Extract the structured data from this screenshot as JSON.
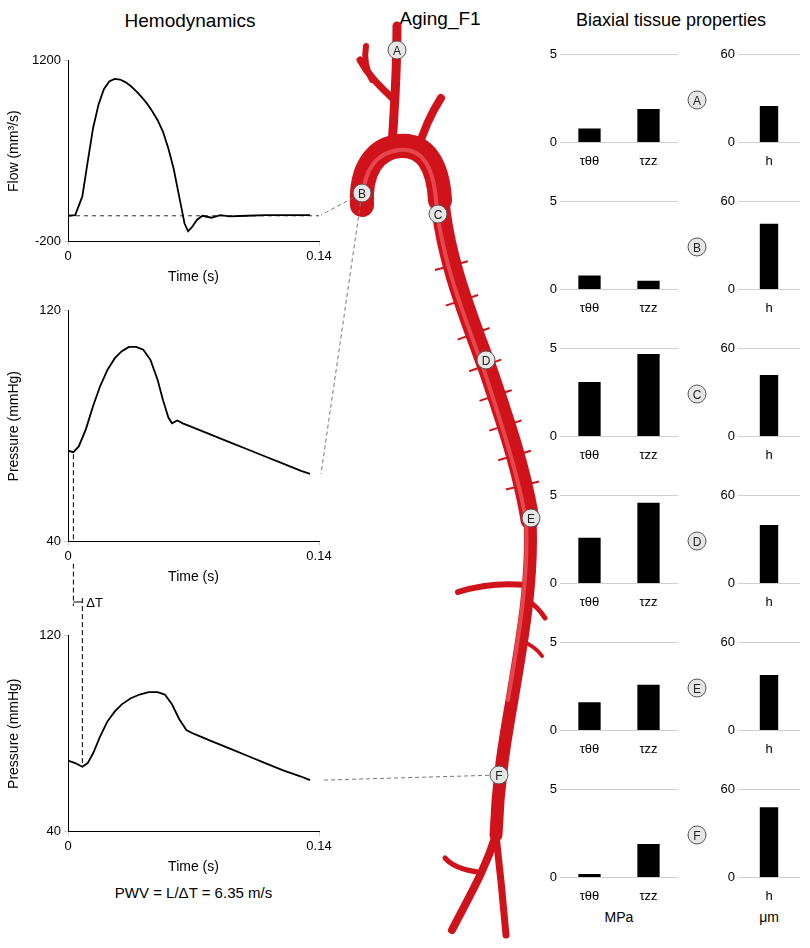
{
  "titles": {
    "figure": "Aging_F1",
    "hemodynamics": "Hemodynamics",
    "tissue": "Biaxial tissue properties"
  },
  "diagram": {
    "sites": [
      "A",
      "B",
      "C",
      "D",
      "E",
      "F"
    ]
  },
  "annotations": {
    "delta_t": {
      "label": "ΔT",
      "from": 0.003,
      "to": 0.008
    },
    "pwv": "PWV = L/ΔT = 6.35 m/s"
  },
  "chart_data": [
    {
      "type": "line",
      "site": "B",
      "color": "#000000",
      "grid": false,
      "xlabel": "Time (s)",
      "ylabel": "Flow (mm³/s)",
      "xlim": [
        0,
        0.14
      ],
      "xticks": [
        0,
        0.14
      ],
      "ylim": [
        -200,
        1200
      ],
      "yticks": [
        -200,
        1200
      ],
      "reference_y": 0,
      "x": [
        0,
        0.004,
        0.008,
        0.011,
        0.014,
        0.017,
        0.02,
        0.023,
        0.026,
        0.029,
        0.032,
        0.035,
        0.038,
        0.041,
        0.044,
        0.047,
        0.05,
        0.053,
        0.056,
        0.059,
        0.061,
        0.063,
        0.065,
        0.067,
        0.069,
        0.072,
        0.075,
        0.08,
        0.085,
        0.09,
        0.1,
        0.11,
        0.12,
        0.13,
        0.135
      ],
      "values": [
        0,
        5,
        150,
        420,
        680,
        860,
        980,
        1040,
        1060,
        1055,
        1035,
        1005,
        965,
        920,
        870,
        810,
        740,
        650,
        520,
        360,
        220,
        80,
        -60,
        -120,
        -90,
        -30,
        0,
        -15,
        5,
        -5,
        0,
        5,
        5,
        5,
        5
      ]
    },
    {
      "type": "line",
      "site": "B",
      "color": "#000000",
      "grid": false,
      "xlabel": "Time (s)",
      "ylabel": "Pressure (mmHg)",
      "xlim": [
        0,
        0.14
      ],
      "xticks": [
        0,
        0.14
      ],
      "ylim": [
        40,
        120
      ],
      "yticks": [
        40,
        120
      ],
      "x": [
        0,
        0.003,
        0.006,
        0.01,
        0.014,
        0.018,
        0.022,
        0.026,
        0.03,
        0.034,
        0.038,
        0.042,
        0.046,
        0.05,
        0.053,
        0.056,
        0.058,
        0.061,
        0.064,
        0.07,
        0.08,
        0.09,
        0.1,
        0.11,
        0.12,
        0.13,
        0.135
      ],
      "values": [
        71.5,
        71,
        73,
        79,
        87,
        94,
        99.5,
        103.5,
        106,
        107.5,
        107.5,
        106.5,
        103,
        96,
        89,
        83,
        81,
        82,
        81,
        79.5,
        77,
        74.5,
        72,
        69.5,
        67,
        64.5,
        63.5
      ]
    },
    {
      "type": "line",
      "site": "F",
      "color": "#000000",
      "grid": false,
      "xlabel": "Time (s)",
      "ylabel": "Pressure (mmHg)",
      "xlim": [
        0,
        0.14
      ],
      "xticks": [
        0,
        0.14
      ],
      "ylim": [
        40,
        120
      ],
      "yticks": [
        40,
        120
      ],
      "x": [
        0,
        0.004,
        0.008,
        0.011,
        0.014,
        0.018,
        0.022,
        0.026,
        0.03,
        0.035,
        0.04,
        0.045,
        0.05,
        0.054,
        0.058,
        0.062,
        0.066,
        0.07,
        0.08,
        0.09,
        0.1,
        0.11,
        0.12,
        0.13,
        0.135
      ],
      "values": [
        69,
        68,
        66.5,
        68,
        72,
        79,
        85,
        89,
        92,
        94.5,
        96,
        97,
        97,
        96,
        92,
        86,
        81.5,
        80,
        77,
        74,
        71,
        68,
        65,
        62.5,
        61
      ]
    },
    {
      "type": "bar",
      "site": "A",
      "categories": [
        "τθθ",
        "τzz"
      ],
      "values": [
        0.8,
        1.9
      ],
      "color": "#000000",
      "ylim": [
        0,
        5
      ],
      "yticks": [
        0,
        5
      ],
      "grid": true
    },
    {
      "type": "bar",
      "site": "A",
      "categories": [
        "h"
      ],
      "values": [
        25
      ],
      "color": "#000000",
      "ylim": [
        0,
        60
      ],
      "yticks": [
        0,
        60
      ],
      "grid": true
    },
    {
      "type": "bar",
      "site": "B",
      "categories": [
        "τθθ",
        "τzz"
      ],
      "values": [
        0.8,
        0.5
      ],
      "color": "#000000",
      "ylim": [
        0,
        5
      ],
      "yticks": [
        0,
        5
      ],
      "grid": true
    },
    {
      "type": "bar",
      "site": "B",
      "categories": [
        "h"
      ],
      "values": [
        45
      ],
      "color": "#000000",
      "ylim": [
        0,
        60
      ],
      "yticks": [
        0,
        60
      ],
      "grid": true
    },
    {
      "type": "bar",
      "site": "C",
      "categories": [
        "τθθ",
        "τzz"
      ],
      "values": [
        3.1,
        4.7
      ],
      "color": "#000000",
      "ylim": [
        0,
        5
      ],
      "yticks": [
        0,
        5
      ],
      "grid": true
    },
    {
      "type": "bar",
      "site": "C",
      "categories": [
        "h"
      ],
      "values": [
        42
      ],
      "color": "#000000",
      "ylim": [
        0,
        60
      ],
      "yticks": [
        0,
        60
      ],
      "grid": true
    },
    {
      "type": "bar",
      "site": "D",
      "categories": [
        "τθθ",
        "τzz"
      ],
      "values": [
        2.6,
        4.6
      ],
      "color": "#000000",
      "ylim": [
        0,
        5
      ],
      "yticks": [
        0,
        5
      ],
      "grid": true
    },
    {
      "type": "bar",
      "site": "D",
      "categories": [
        "h"
      ],
      "values": [
        40
      ],
      "color": "#000000",
      "ylim": [
        0,
        60
      ],
      "yticks": [
        0,
        60
      ],
      "grid": true
    },
    {
      "type": "bar",
      "site": "E",
      "categories": [
        "τθθ",
        "τzz"
      ],
      "values": [
        1.6,
        2.6
      ],
      "color": "#000000",
      "ylim": [
        0,
        5
      ],
      "yticks": [
        0,
        5
      ],
      "grid": true
    },
    {
      "type": "bar",
      "site": "E",
      "categories": [
        "h"
      ],
      "values": [
        38
      ],
      "color": "#000000",
      "ylim": [
        0,
        60
      ],
      "yticks": [
        0,
        60
      ],
      "grid": true
    },
    {
      "type": "bar",
      "site": "F",
      "categories": [
        "τθθ",
        "τzz"
      ],
      "values": [
        0.2,
        1.9
      ],
      "color": "#000000",
      "ylim": [
        0,
        5
      ],
      "yticks": [
        0,
        5
      ],
      "grid": true,
      "xlabel": "MPa"
    },
    {
      "type": "bar",
      "site": "F",
      "categories": [
        "h"
      ],
      "values": [
        48
      ],
      "color": "#000000",
      "ylim": [
        0,
        60
      ],
      "yticks": [
        0,
        60
      ],
      "grid": true,
      "xlabel": "μm"
    }
  ]
}
